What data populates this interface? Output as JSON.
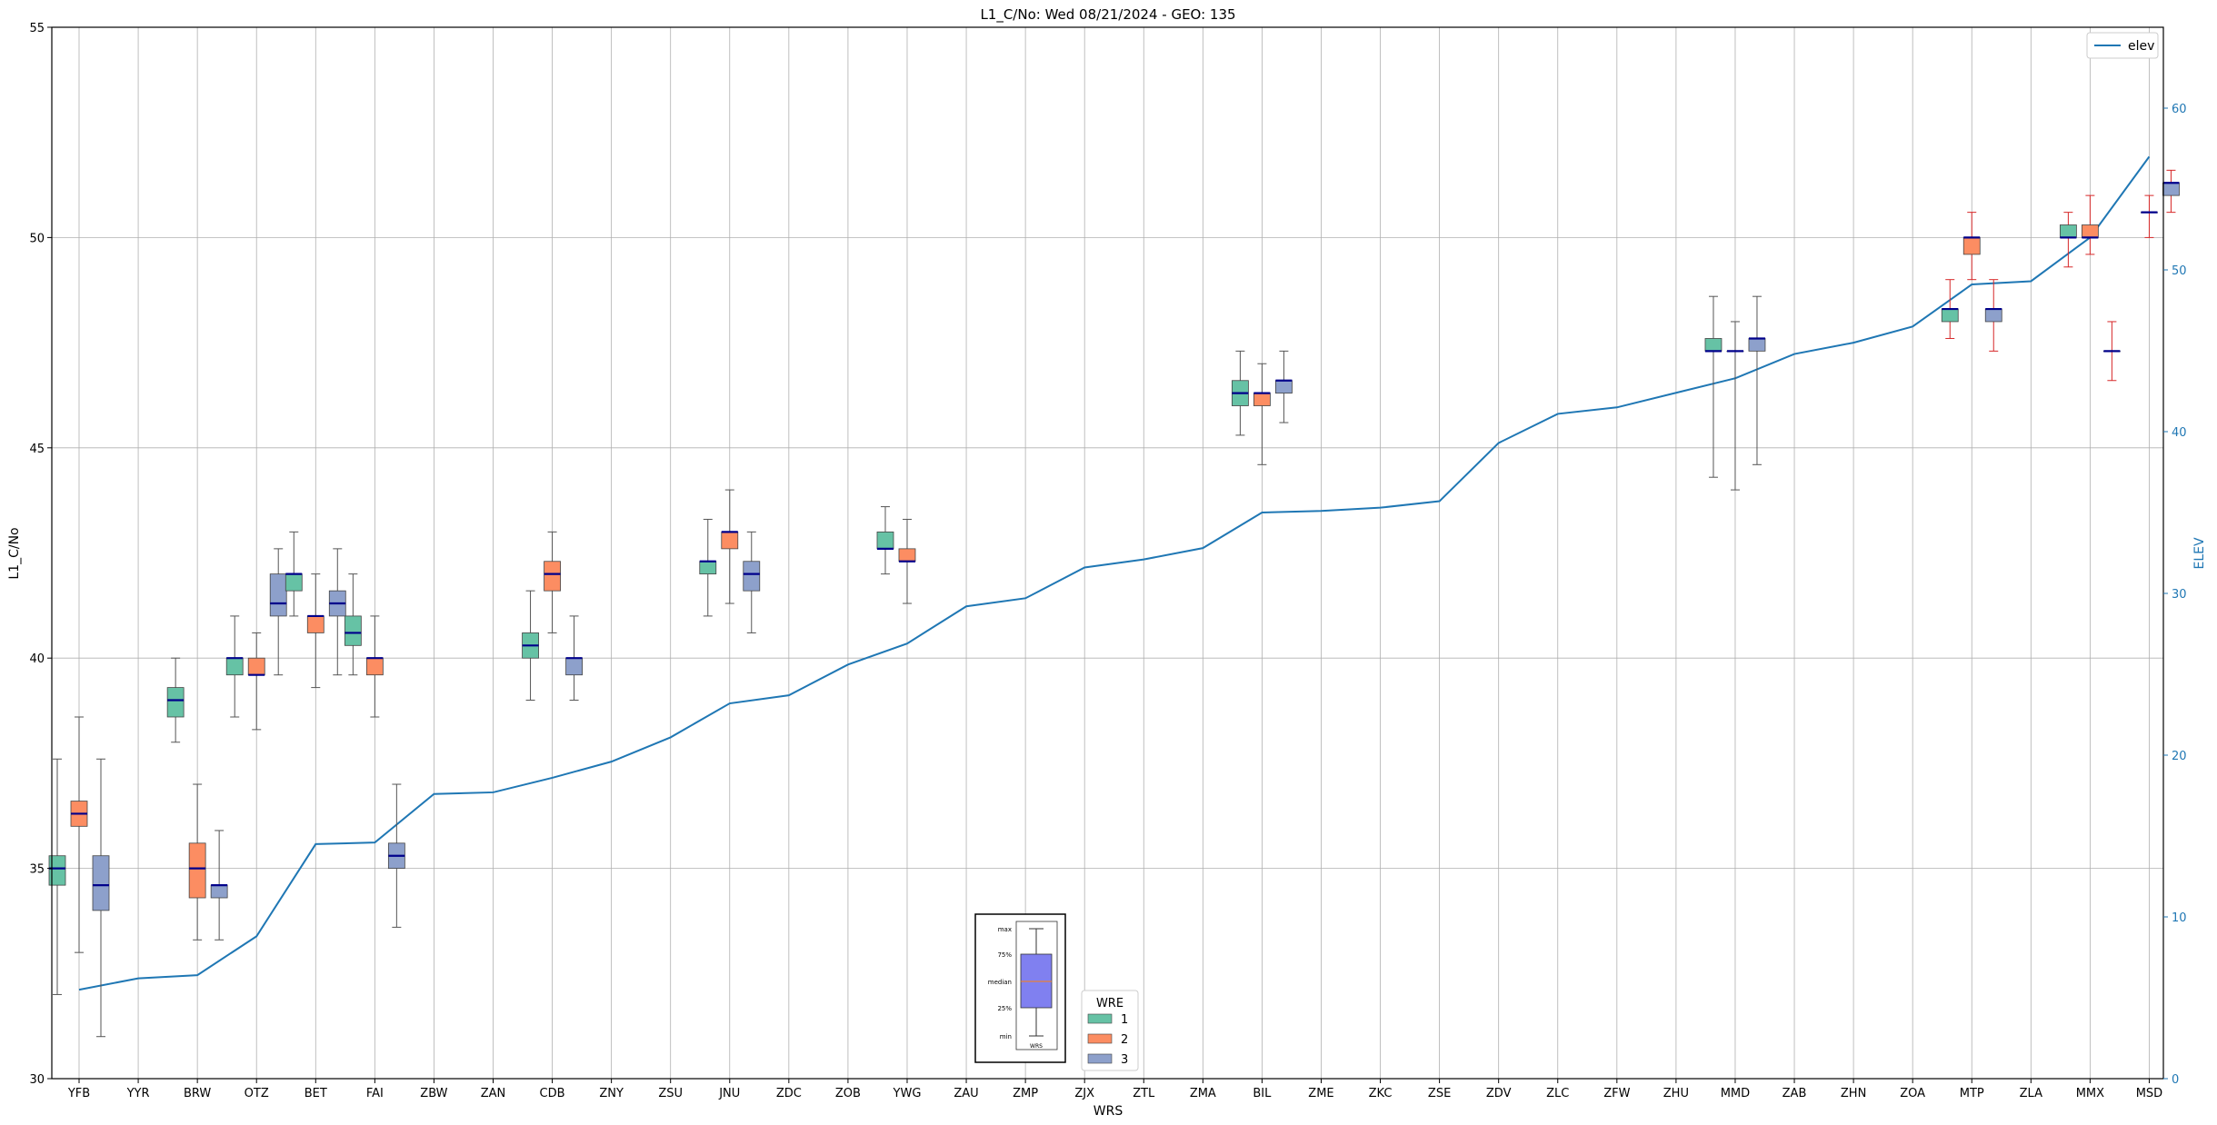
{
  "chart_data": {
    "type": "box",
    "title": "L1_C/No: Wed 08/21/2024 - GEO: 135",
    "xlabel": "WRS",
    "ylabel": "L1_C/No",
    "y2label": "ELEV",
    "ylim": [
      30,
      55
    ],
    "y2lim": [
      0,
      65
    ],
    "yticks": [
      30,
      35,
      40,
      45,
      50,
      55
    ],
    "y2ticks": [
      0,
      10,
      20,
      30,
      40,
      50,
      60
    ],
    "grid": true,
    "categories": [
      "YFB",
      "YYR",
      "BRW",
      "OTZ",
      "BET",
      "FAI",
      "ZBW",
      "ZAN",
      "CDB",
      "ZNY",
      "ZSU",
      "JNU",
      "ZDC",
      "ZOB",
      "YWG",
      "ZAU",
      "ZMP",
      "ZJX",
      "ZTL",
      "ZMA",
      "BIL",
      "ZME",
      "ZKC",
      "ZSE",
      "ZDV",
      "ZLC",
      "ZFW",
      "ZHU",
      "MMD",
      "ZAB",
      "ZHN",
      "ZOA",
      "MTP",
      "ZLA",
      "MMX",
      "MSD"
    ],
    "elev_series": {
      "name": "elev",
      "color": "#1f77b4",
      "values": [
        5.5,
        6.2,
        6.4,
        8.8,
        14.5,
        14.6,
        17.6,
        17.7,
        18.6,
        19.6,
        21.1,
        23.2,
        23.7,
        25.6,
        26.9,
        29.2,
        29.7,
        31.6,
        32.1,
        32.8,
        35.0,
        35.1,
        35.3,
        35.7,
        39.3,
        41.1,
        41.5,
        42.4,
        43.3,
        44.8,
        45.5,
        46.5,
        49.1,
        49.3,
        52.0,
        57.0
      ],
      "legend_location": "upper right"
    },
    "wre_colors": {
      "1": "#66c2a5",
      "2": "#fc8d62",
      "3": "#8da0cb"
    },
    "wre_legend_title": "WRE",
    "boxes": [
      {
        "cat": "YFB",
        "wre": 1,
        "whislo": 32.0,
        "q1": 34.6,
        "med": 35.0,
        "q3": 35.3,
        "whishi": 37.6,
        "whisker_color": "#555555"
      },
      {
        "cat": "YFB",
        "wre": 2,
        "whislo": 33.0,
        "q1": 36.0,
        "med": 36.3,
        "q3": 36.6,
        "whishi": 38.6,
        "whisker_color": "#555555"
      },
      {
        "cat": "YFB",
        "wre": 3,
        "whislo": 31.0,
        "q1": 34.0,
        "med": 34.6,
        "q3": 35.3,
        "whishi": 37.6,
        "whisker_color": "#555555"
      },
      {
        "cat": "BRW",
        "wre": 1,
        "whislo": 38.0,
        "q1": 38.6,
        "med": 39.0,
        "q3": 39.3,
        "whishi": 40.0,
        "whisker_color": "#555555"
      },
      {
        "cat": "BRW",
        "wre": 2,
        "whislo": 33.3,
        "q1": 34.3,
        "med": 35.0,
        "q3": 35.6,
        "whishi": 37.0,
        "whisker_color": "#555555"
      },
      {
        "cat": "BRW",
        "wre": 3,
        "whislo": 33.3,
        "q1": 34.3,
        "med": 34.6,
        "q3": 34.6,
        "whishi": 35.9,
        "whisker_color": "#555555"
      },
      {
        "cat": "OTZ",
        "wre": 1,
        "whislo": 38.6,
        "q1": 39.6,
        "med": 40.0,
        "q3": 40.0,
        "whishi": 41.0,
        "whisker_color": "#555555"
      },
      {
        "cat": "OTZ",
        "wre": 2,
        "whislo": 38.3,
        "q1": 39.6,
        "med": 39.6,
        "q3": 40.0,
        "whishi": 40.6,
        "whisker_color": "#555555"
      },
      {
        "cat": "OTZ",
        "wre": 3,
        "whislo": 39.6,
        "q1": 41.0,
        "med": 41.3,
        "q3": 42.0,
        "whishi": 42.6,
        "whisker_color": "#555555"
      },
      {
        "cat": "BET",
        "wre": 1,
        "whislo": 41.0,
        "q1": 41.6,
        "med": 42.0,
        "q3": 42.0,
        "whishi": 43.0,
        "whisker_color": "#555555"
      },
      {
        "cat": "BET",
        "wre": 2,
        "whislo": 39.3,
        "q1": 40.6,
        "med": 41.0,
        "q3": 41.0,
        "whishi": 42.0,
        "whisker_color": "#555555"
      },
      {
        "cat": "BET",
        "wre": 3,
        "whislo": 39.6,
        "q1": 41.0,
        "med": 41.3,
        "q3": 41.6,
        "whishi": 42.6,
        "whisker_color": "#555555"
      },
      {
        "cat": "FAI",
        "wre": 1,
        "whislo": 39.6,
        "q1": 40.3,
        "med": 40.6,
        "q3": 41.0,
        "whishi": 42.0,
        "whisker_color": "#555555"
      },
      {
        "cat": "FAI",
        "wre": 2,
        "whislo": 38.6,
        "q1": 39.6,
        "med": 40.0,
        "q3": 40.0,
        "whishi": 41.0,
        "whisker_color": "#555555"
      },
      {
        "cat": "FAI",
        "wre": 3,
        "whislo": 33.6,
        "q1": 35.0,
        "med": 35.3,
        "q3": 35.6,
        "whishi": 37.0,
        "whisker_color": "#555555"
      },
      {
        "cat": "CDB",
        "wre": 1,
        "whislo": 39.0,
        "q1": 40.0,
        "med": 40.3,
        "q3": 40.6,
        "whishi": 41.6,
        "whisker_color": "#555555"
      },
      {
        "cat": "CDB",
        "wre": 2,
        "whislo": 40.6,
        "q1": 41.6,
        "med": 42.0,
        "q3": 42.3,
        "whishi": 43.0,
        "whisker_color": "#555555"
      },
      {
        "cat": "CDB",
        "wre": 3,
        "whislo": 39.0,
        "q1": 39.6,
        "med": 40.0,
        "q3": 40.0,
        "whishi": 41.0,
        "whisker_color": "#555555"
      },
      {
        "cat": "JNU",
        "wre": 1,
        "whislo": 41.0,
        "q1": 42.0,
        "med": 42.3,
        "q3": 42.3,
        "whishi": 43.3,
        "whisker_color": "#555555"
      },
      {
        "cat": "JNU",
        "wre": 2,
        "whislo": 41.3,
        "q1": 42.6,
        "med": 43.0,
        "q3": 43.0,
        "whishi": 44.0,
        "whisker_color": "#555555"
      },
      {
        "cat": "JNU",
        "wre": 3,
        "whislo": 40.6,
        "q1": 41.6,
        "med": 42.0,
        "q3": 42.3,
        "whishi": 43.0,
        "whisker_color": "#555555"
      },
      {
        "cat": "YWG",
        "wre": 1,
        "whislo": 42.0,
        "q1": 42.6,
        "med": 42.6,
        "q3": 43.0,
        "whishi": 43.6,
        "whisker_color": "#555555"
      },
      {
        "cat": "YWG",
        "wre": 2,
        "whislo": 41.3,
        "q1": 42.3,
        "med": 42.3,
        "q3": 42.6,
        "whishi": 43.3,
        "whisker_color": "#555555"
      },
      {
        "cat": "BIL",
        "wre": 1,
        "whislo": 45.3,
        "q1": 46.0,
        "med": 46.3,
        "q3": 46.6,
        "whishi": 47.3,
        "whisker_color": "#555555"
      },
      {
        "cat": "BIL",
        "wre": 2,
        "whislo": 44.6,
        "q1": 46.0,
        "med": 46.3,
        "q3": 46.3,
        "whishi": 47.0,
        "whisker_color": "#555555"
      },
      {
        "cat": "BIL",
        "wre": 3,
        "whislo": 45.6,
        "q1": 46.3,
        "med": 46.6,
        "q3": 46.6,
        "whishi": 47.3,
        "whisker_color": "#555555"
      },
      {
        "cat": "MMD",
        "wre": 1,
        "whislo": 44.3,
        "q1": 47.3,
        "med": 47.3,
        "q3": 47.6,
        "whishi": 48.6,
        "whisker_color": "#555555"
      },
      {
        "cat": "MMD",
        "wre": 2,
        "whislo": 44.0,
        "q1": 47.3,
        "med": 47.3,
        "q3": 47.3,
        "whishi": 48.0,
        "whisker_color": "#555555"
      },
      {
        "cat": "MMD",
        "wre": 3,
        "whislo": 44.6,
        "q1": 47.3,
        "med": 47.6,
        "q3": 47.6,
        "whishi": 48.6,
        "whisker_color": "#555555"
      },
      {
        "cat": "MTP",
        "wre": 1,
        "whislo": 47.6,
        "q1": 48.0,
        "med": 48.3,
        "q3": 48.3,
        "whishi": 49.0,
        "whisker_color": "#d62728"
      },
      {
        "cat": "MTP",
        "wre": 2,
        "whislo": 49.0,
        "q1": 49.6,
        "med": 50.0,
        "q3": 50.0,
        "whishi": 50.6,
        "whisker_color": "#d62728"
      },
      {
        "cat": "MTP",
        "wre": 3,
        "whislo": 47.3,
        "q1": 48.0,
        "med": 48.3,
        "q3": 48.3,
        "whishi": 49.0,
        "whisker_color": "#d62728"
      },
      {
        "cat": "MMX",
        "wre": 1,
        "whislo": 49.3,
        "q1": 50.0,
        "med": 50.0,
        "q3": 50.3,
        "whishi": 50.6,
        "whisker_color": "#d62728"
      },
      {
        "cat": "MMX",
        "wre": 2,
        "whislo": 49.6,
        "q1": 50.0,
        "med": 50.0,
        "q3": 50.3,
        "whishi": 51.0,
        "whisker_color": "#d62728"
      },
      {
        "cat": "MMX",
        "wre": 3,
        "whislo": 46.6,
        "q1": 47.3,
        "med": 47.3,
        "q3": 47.3,
        "whishi": 48.0,
        "whisker_color": "#d62728"
      },
      {
        "cat": "MSD",
        "wre": 2,
        "whislo": 50.0,
        "q1": 50.6,
        "med": 50.6,
        "q3": 50.6,
        "whishi": 51.0,
        "whisker_color": "#d62728"
      },
      {
        "cat": "MSD",
        "wre": 3,
        "whislo": 50.6,
        "q1": 51.0,
        "med": 51.3,
        "q3": 51.3,
        "whishi": 51.6,
        "whisker_color": "#d62728"
      }
    ],
    "inset_key": {
      "labels": [
        "max",
        "75%",
        "median",
        "25%",
        "min"
      ],
      "axis_label": "WRS",
      "box_color": "#8080f0"
    },
    "wre_legend_entries": [
      "1",
      "2",
      "3"
    ]
  }
}
